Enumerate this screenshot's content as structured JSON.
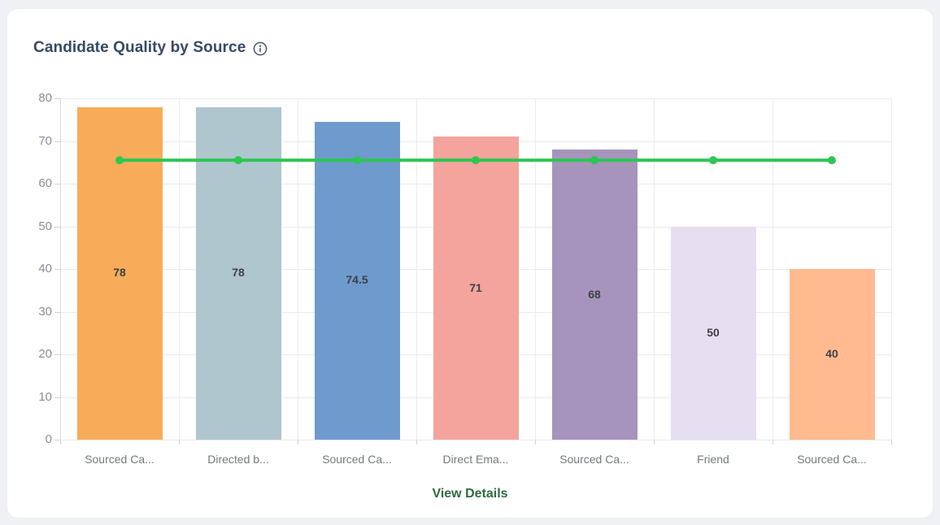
{
  "card": {
    "title": "Candidate Quality by Source",
    "footer_link": "View Details"
  },
  "icons": {
    "info": "circle-i info glyph"
  },
  "colors": {
    "card_background": "#ffffff",
    "page_background": "#f0f1f4",
    "title_text": "#364a63",
    "footer_link_text": "#2e6b3f",
    "benchmark_line": "#2dc653",
    "grid_line": "#e9eaee",
    "axis_line": "#d8dadd",
    "tick_label": "#8a8e95",
    "category_label": "#75797f",
    "value_label": "#3d4147"
  },
  "chart_data": {
    "type": "bar",
    "title": "Candidate Quality by Source",
    "categories": [
      "Sourced Ca...",
      "Directed b...",
      "Sourced Ca...",
      "Direct Ema...",
      "Sourced Ca...",
      "Friend",
      "Sourced Ca..."
    ],
    "series": [
      {
        "name": "Quality score",
        "type": "bar",
        "values": [
          78,
          78,
          74.5,
          71,
          68,
          50,
          40
        ],
        "colors": [
          "#f8ac59",
          "#afc6cf",
          "#6f9acd",
          "#f4a49d",
          "#a794bc",
          "#e6def1",
          "#ffba90"
        ]
      },
      {
        "name": "Benchmark",
        "type": "line",
        "values": [
          65.5,
          65.5,
          65.5,
          65.5,
          65.5,
          65.5,
          65.5
        ],
        "color": "#2dc653"
      }
    ],
    "value_labels": [
      "78",
      "78",
      "74.5",
      "71",
      "68",
      "50",
      "40"
    ],
    "xlabel": "",
    "ylabel": "",
    "ylim": [
      0,
      80
    ],
    "yticks": [
      0,
      10,
      20,
      30,
      40,
      50,
      60,
      70,
      80
    ],
    "grid": true,
    "legend": "none"
  }
}
